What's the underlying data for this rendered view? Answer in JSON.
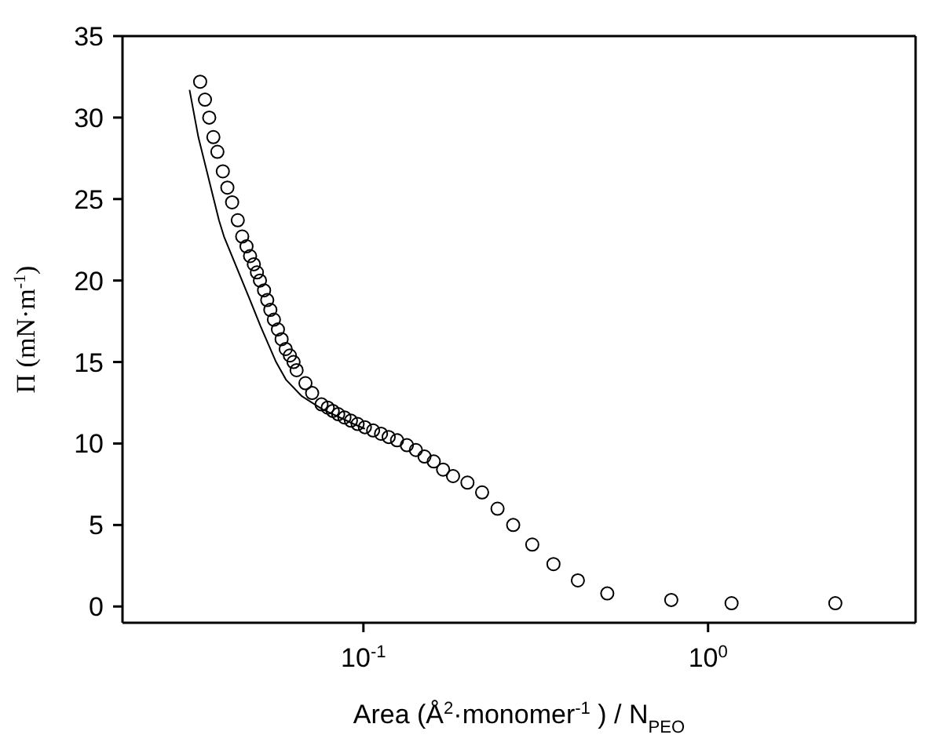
{
  "chart_data": {
    "type": "scatter",
    "xlabel": "Area (Å$^{2}$·monomer$^{-1}$ ) / N$_{PEO}$",
    "ylabel": "Π (mN·m$^{-1}$)",
    "log": "x",
    "xlim": [
      0.02,
      4
    ],
    "xticks": [
      {
        "value": 0.1,
        "label": "10$^{-1}$"
      },
      {
        "value": 1,
        "label": "10$^{0}$"
      }
    ],
    "ylim": [
      -1,
      35
    ],
    "yticks": [
      0,
      5,
      10,
      15,
      20,
      25,
      30,
      35
    ],
    "grid": false,
    "legend": false,
    "marker": "circle",
    "series": [
      {
        "color": "#000000",
        "x": [
          0.0336,
          0.0347,
          0.0357,
          0.0367,
          0.0377,
          0.0391,
          0.0403,
          0.0416,
          0.0432,
          0.0445,
          0.0458,
          0.0469,
          0.0481,
          0.0491,
          0.0501,
          0.0515,
          0.0526,
          0.0537,
          0.055,
          0.0565,
          0.0579,
          0.0595,
          0.0612,
          0.0627,
          0.064,
          0.0679,
          0.071,
          0.0756,
          0.0788,
          0.0815,
          0.0845,
          0.0881,
          0.092,
          0.0962,
          0.101,
          0.1067,
          0.1125,
          0.1184,
          0.1252,
          0.1337,
          0.142,
          0.1504,
          0.16,
          0.1703,
          0.182,
          0.2004,
          0.221,
          0.245,
          0.272,
          0.309,
          0.356,
          0.419,
          0.51,
          0.782,
          1.17,
          2.34
        ],
        "values": [
          32.2,
          31.1,
          30.0,
          28.8,
          27.9,
          26.7,
          25.7,
          24.8,
          23.7,
          22.7,
          22.1,
          21.5,
          21.0,
          20.5,
          20.0,
          19.4,
          18.8,
          18.2,
          17.6,
          17.0,
          16.4,
          15.8,
          15.4,
          15.0,
          14.5,
          13.7,
          13.1,
          12.4,
          12.2,
          12.0,
          11.8,
          11.6,
          11.4,
          11.2,
          11.0,
          10.8,
          10.6,
          10.4,
          10.2,
          9.9,
          9.6,
          9.2,
          8.9,
          8.4,
          8.0,
          7.6,
          7.0,
          6.0,
          5.0,
          3.8,
          2.6,
          1.6,
          0.8,
          0.4,
          0.2,
          0.2
        ]
      },
      {
        "type": "line",
        "color": "#000000",
        "marker": "none",
        "line_style": "solid",
        "x": [
          0.0313,
          0.0332,
          0.0381,
          0.0394,
          0.0469,
          0.0503,
          0.0558,
          0.0597,
          0.0663,
          0.0761,
          0.0937,
          0.101
        ],
        "values": [
          31.7,
          28.8,
          23.7,
          22.7,
          18.8,
          17.2,
          15.0,
          13.9,
          12.9,
          12.1,
          11.2,
          10.9
        ]
      }
    ]
  }
}
